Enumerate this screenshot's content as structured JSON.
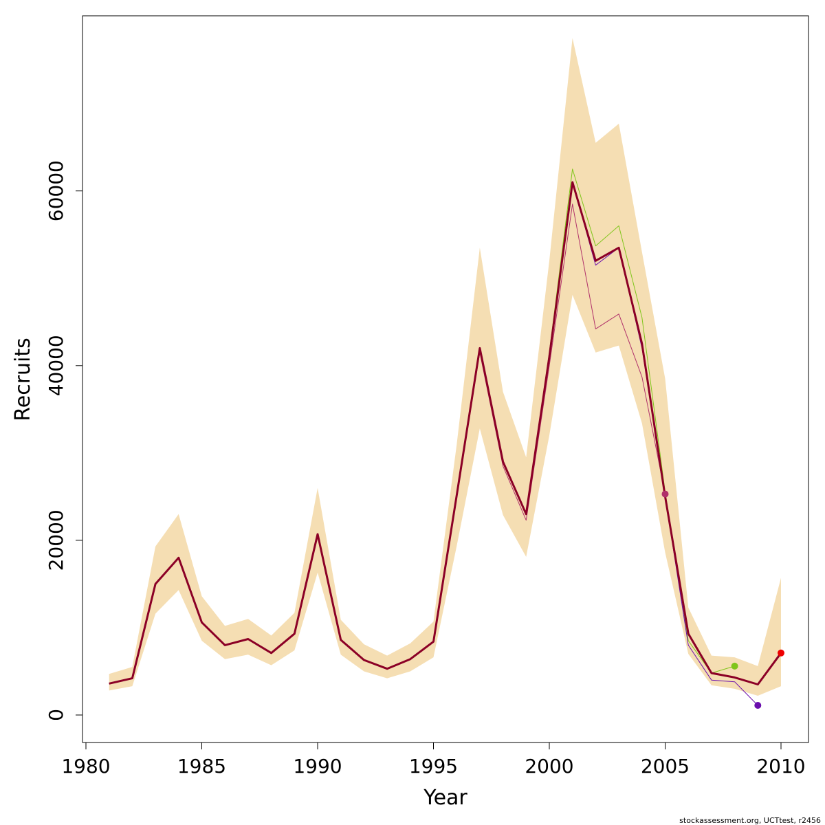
{
  "chart_data": {
    "type": "line",
    "title": "",
    "xlabel": "Year",
    "ylabel": "Recruits",
    "xlim": [
      1980,
      2011
    ],
    "ylim": [
      -3000,
      80000
    ],
    "x_ticks": [
      1980,
      1985,
      1990,
      1995,
      2000,
      2005,
      2010
    ],
    "y_ticks": [
      0,
      20000,
      40000,
      60000
    ],
    "grid": false,
    "legend": "none",
    "band": {
      "color": "#F5DEB3",
      "x": [
        1981,
        1982,
        1983,
        1984,
        1985,
        1986,
        1987,
        1988,
        1989,
        1990,
        1991,
        1992,
        1993,
        1994,
        1995,
        1996,
        1997,
        1998,
        1999,
        2000,
        2001,
        2002,
        2003,
        2004,
        2005,
        2006,
        2007,
        2008,
        2009,
        2010
      ],
      "lower": [
        2800,
        3300,
        11600,
        14300,
        8500,
        6400,
        6900,
        5700,
        7400,
        16300,
        6900,
        5000,
        4200,
        5000,
        6600,
        19300,
        32800,
        22900,
        18100,
        32000,
        48100,
        41500,
        42300,
        33400,
        18600,
        7000,
        3400,
        3000,
        2200,
        3300
      ],
      "upper": [
        4700,
        5500,
        19300,
        23000,
        13600,
        10200,
        11000,
        9100,
        11700,
        26000,
        10900,
        8100,
        6800,
        8200,
        10700,
        30900,
        53500,
        37000,
        29500,
        52000,
        77500,
        65500,
        67700,
        53000,
        38500,
        12300,
        6800,
        6600,
        5600,
        15700
      ]
    },
    "series": [
      {
        "color": "#8B0026",
        "width": 3,
        "x": [
          1981,
          1982,
          1983,
          1984,
          1985,
          1986,
          1987,
          1988,
          1989,
          1990,
          1991,
          1992,
          1993,
          1994,
          1995,
          1996,
          1997,
          1998,
          1999,
          2000,
          2001,
          2002,
          2003,
          2004,
          2005,
          2006,
          2007,
          2008,
          2009,
          2010
        ],
        "values": [
          3600,
          4200,
          15000,
          18000,
          10600,
          8000,
          8700,
          7100,
          9300,
          20700,
          8600,
          6300,
          5300,
          6400,
          8400,
          25100,
          42000,
          29000,
          23000,
          41000,
          61000,
          52000,
          53500,
          42500,
          25000,
          9300,
          4800,
          4300,
          3500,
          7100
        ]
      },
      {
        "color": "#7FC51A",
        "width": 1,
        "x": [
          1981,
          1982,
          1983,
          1984,
          1985,
          1986,
          1987,
          1988,
          1989,
          1990,
          1991,
          1992,
          1993,
          1994,
          1995,
          1996,
          1997,
          1998,
          1999,
          2000,
          2001,
          2002,
          2003,
          2004,
          2005,
          2006,
          2007,
          2008
        ],
        "values": [
          3600,
          4200,
          15000,
          18000,
          10600,
          8000,
          8700,
          7100,
          9300,
          20700,
          8600,
          6300,
          5300,
          6400,
          8400,
          25100,
          42000,
          29000,
          23000,
          41500,
          62500,
          53700,
          56000,
          45500,
          25500,
          8500,
          4800,
          5600
        ],
        "end_point": [
          2008,
          5600
        ]
      },
      {
        "color": "#6A0DAD",
        "width": 1,
        "x": [
          1981,
          1982,
          1983,
          1984,
          1985,
          1986,
          1987,
          1988,
          1989,
          1990,
          1991,
          1992,
          1993,
          1994,
          1995,
          1996,
          1997,
          1998,
          1999,
          2000,
          2001,
          2002,
          2003,
          2004,
          2005,
          2006,
          2007,
          2008,
          2009
        ],
        "values": [
          3600,
          4200,
          15000,
          18000,
          10600,
          8000,
          8700,
          7100,
          9300,
          20700,
          8600,
          6300,
          5300,
          6400,
          8400,
          25100,
          42000,
          29000,
          23000,
          41000,
          61000,
          51500,
          53500,
          42000,
          25000,
          8000,
          4000,
          3800,
          1100
        ],
        "end_point": [
          2009,
          1100
        ]
      },
      {
        "color": "#B0306A",
        "width": 1,
        "x": [
          1981,
          1982,
          1983,
          1984,
          1985,
          1986,
          1987,
          1988,
          1989,
          1990,
          1991,
          1992,
          1993,
          1994,
          1995,
          1996,
          1997,
          1998,
          1999,
          2000,
          2001,
          2002,
          2003,
          2004,
          2005
        ],
        "values": [
          3600,
          4200,
          15000,
          18000,
          10600,
          8000,
          8700,
          7100,
          9300,
          20700,
          8600,
          6300,
          5300,
          6400,
          8400,
          25100,
          41500,
          28500,
          22300,
          40000,
          58500,
          44200,
          45900,
          38700,
          25300
        ],
        "end_point": [
          2005,
          25300
        ]
      }
    ],
    "final_point": {
      "x": 2010,
      "y": 7100,
      "color": "#EE0000"
    },
    "credit": "stockassessment.org, UCTtest, r2456"
  }
}
